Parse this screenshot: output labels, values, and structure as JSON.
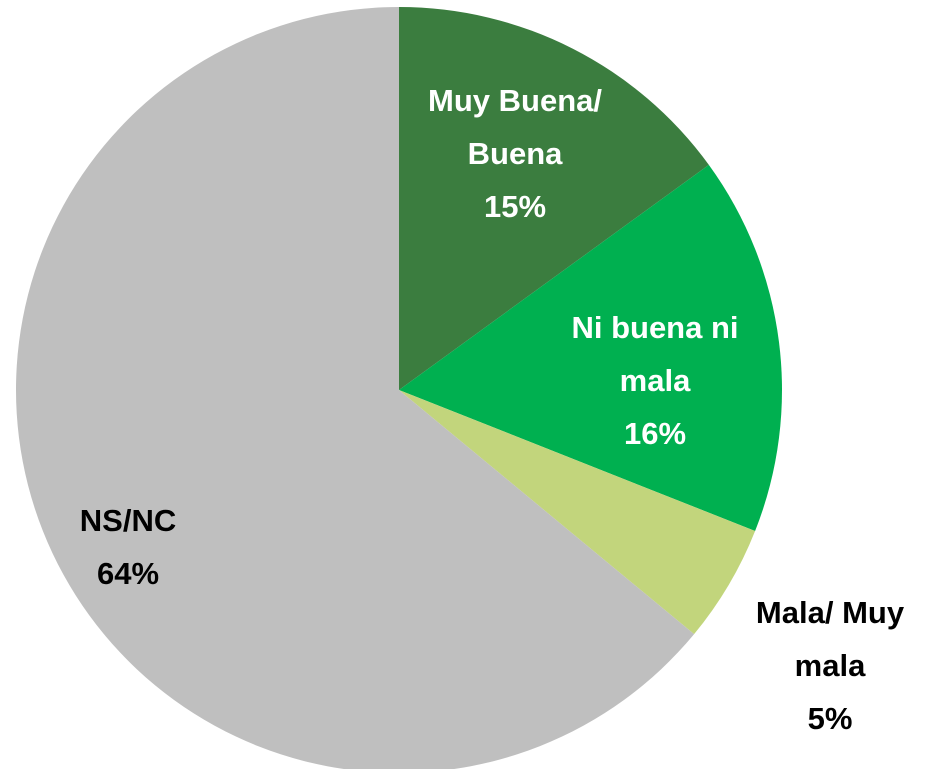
{
  "chart_data": {
    "type": "pie",
    "categories": [
      "Muy Buena/ Buena",
      "Ni buena ni mala",
      "Mala/ Muy mala",
      "NS/NC"
    ],
    "values": [
      15,
      16,
      5,
      64
    ],
    "value_labels": [
      "15%",
      "16%",
      "5%",
      "64%"
    ],
    "colors": [
      "#3b7d3f",
      "#00b050",
      "#c2d57c",
      "#bfbfbf"
    ]
  }
}
